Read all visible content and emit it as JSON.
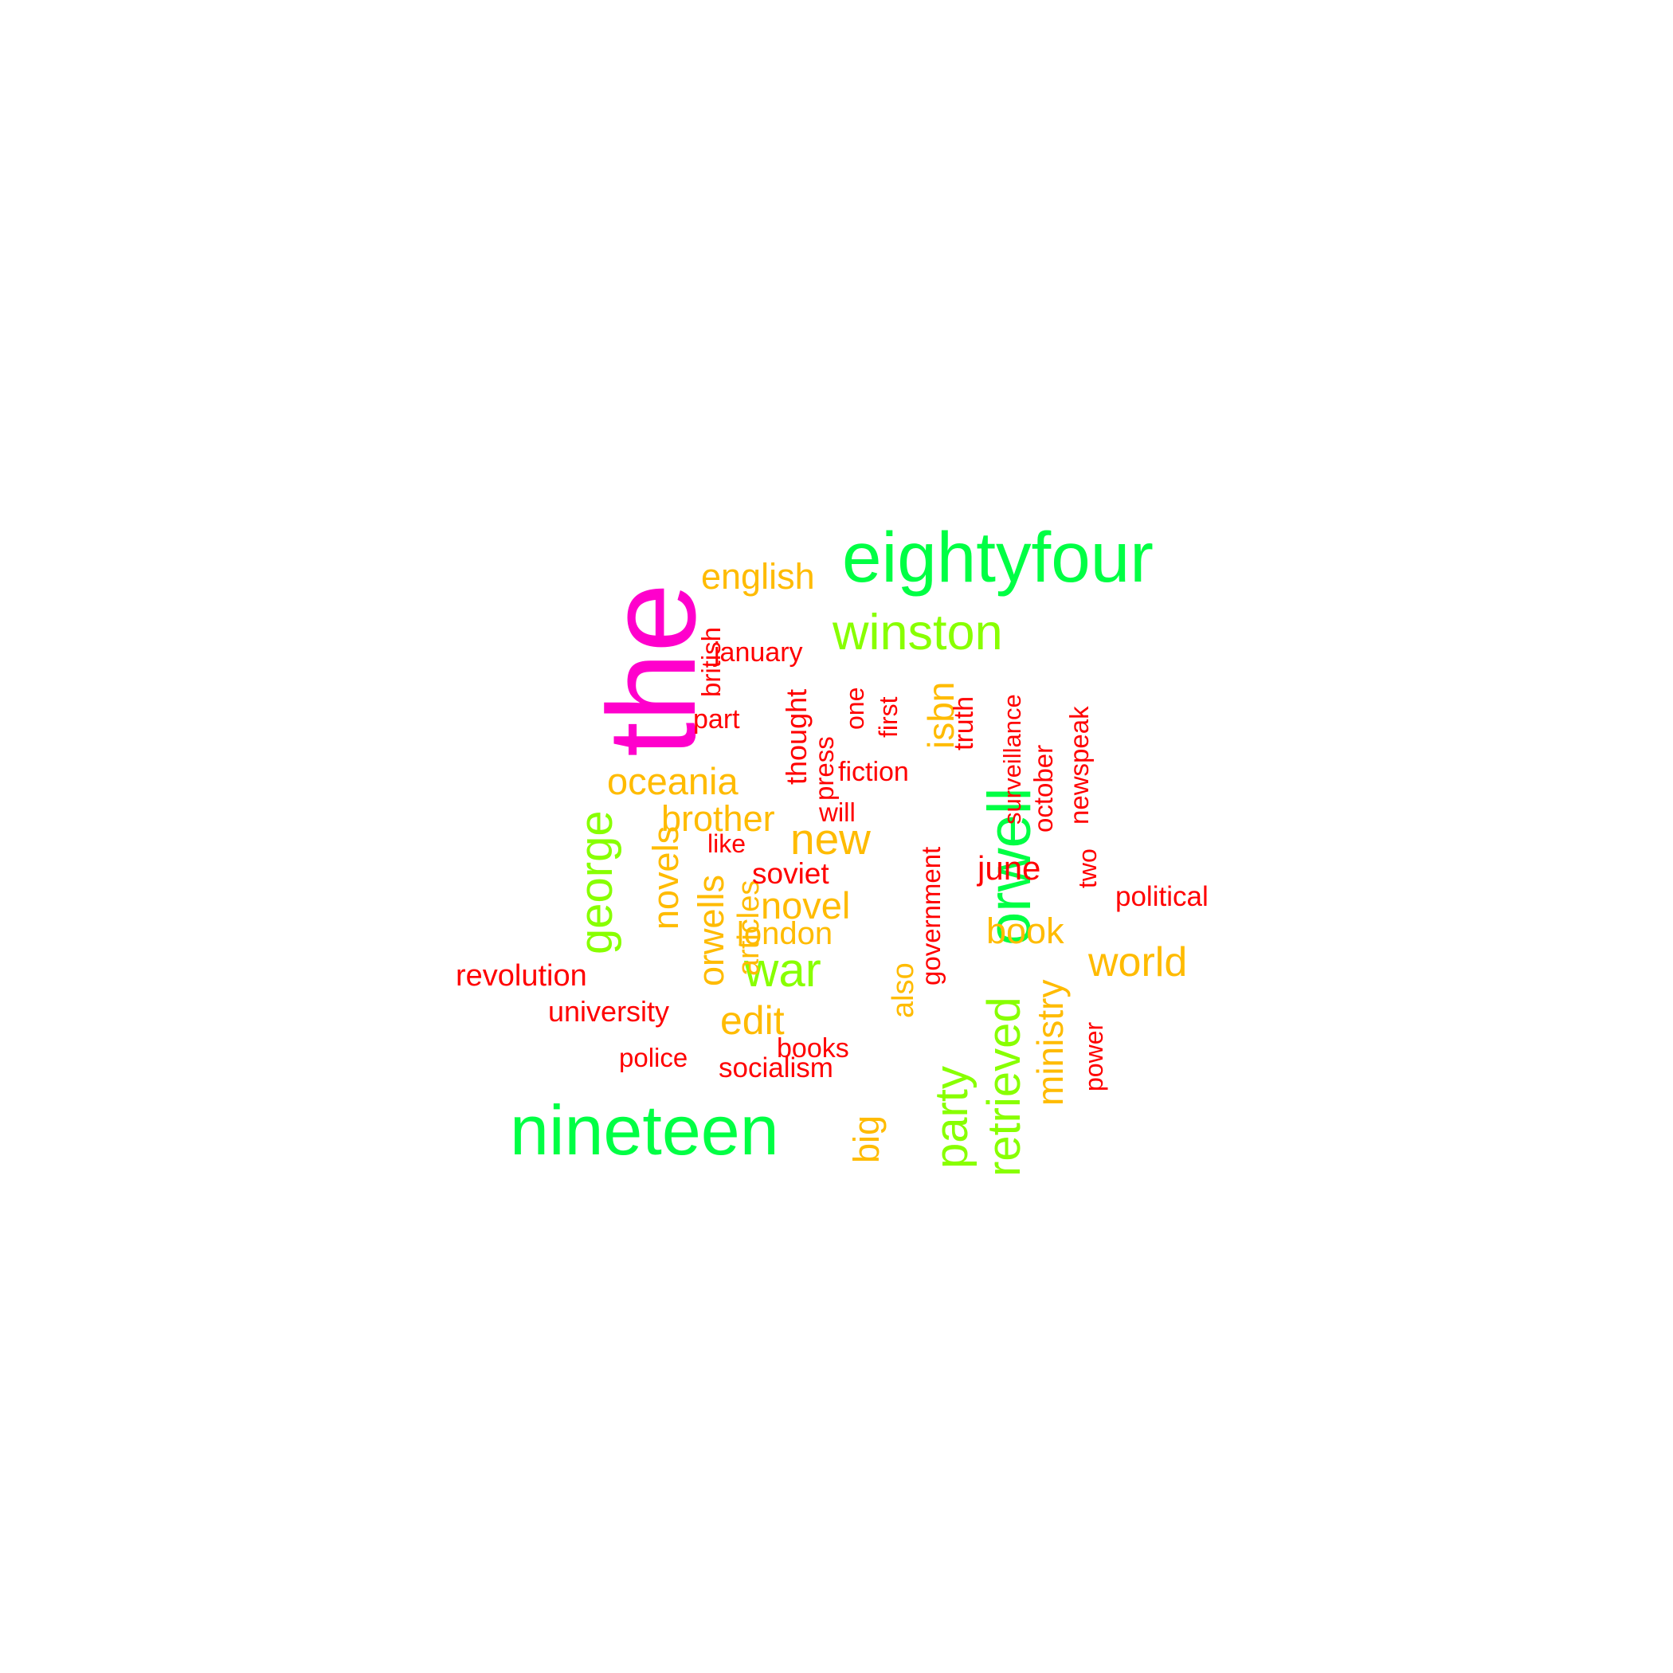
{
  "palette": {
    "magenta": "#FF00CC",
    "green": "#00FF44",
    "lime": "#88FF00",
    "amber": "#FFBB00",
    "red": "#FF0000"
  },
  "words": [
    {
      "text": "the",
      "color": "magenta",
      "weight": 10,
      "orientation": "vertical"
    },
    {
      "text": "eightyfour",
      "color": "green",
      "weight": 9,
      "orientation": "horizontal"
    },
    {
      "text": "nineteen",
      "color": "green",
      "weight": 9,
      "orientation": "horizontal"
    },
    {
      "text": "orwell",
      "color": "green",
      "weight": 8,
      "orientation": "vertical"
    },
    {
      "text": "winston",
      "color": "lime",
      "weight": 7,
      "orientation": "horizontal"
    },
    {
      "text": "george",
      "color": "lime",
      "weight": 7,
      "orientation": "vertical"
    },
    {
      "text": "party",
      "color": "lime",
      "weight": 7,
      "orientation": "vertical"
    },
    {
      "text": "retrieved",
      "color": "lime",
      "weight": 7,
      "orientation": "vertical"
    },
    {
      "text": "war",
      "color": "lime",
      "weight": 7,
      "orientation": "horizontal"
    },
    {
      "text": "english",
      "color": "amber",
      "weight": 5,
      "orientation": "horizontal"
    },
    {
      "text": "isbn",
      "color": "amber",
      "weight": 5,
      "orientation": "vertical"
    },
    {
      "text": "oceania",
      "color": "amber",
      "weight": 5,
      "orientation": "horizontal"
    },
    {
      "text": "brother",
      "color": "amber",
      "weight": 5,
      "orientation": "horizontal"
    },
    {
      "text": "new",
      "color": "amber",
      "weight": 6,
      "orientation": "horizontal"
    },
    {
      "text": "novels",
      "color": "amber",
      "weight": 5,
      "orientation": "vertical"
    },
    {
      "text": "orwells",
      "color": "amber",
      "weight": 5,
      "orientation": "vertical"
    },
    {
      "text": "articles",
      "color": "amber",
      "weight": 4,
      "orientation": "vertical"
    },
    {
      "text": "novel",
      "color": "amber",
      "weight": 5,
      "orientation": "horizontal"
    },
    {
      "text": "london",
      "color": "amber",
      "weight": 4,
      "orientation": "horizontal"
    },
    {
      "text": "edit",
      "color": "amber",
      "weight": 5,
      "orientation": "horizontal"
    },
    {
      "text": "also",
      "color": "amber",
      "weight": 4,
      "orientation": "vertical"
    },
    {
      "text": "book",
      "color": "amber",
      "weight": 5,
      "orientation": "horizontal"
    },
    {
      "text": "world",
      "color": "amber",
      "weight": 6,
      "orientation": "horizontal"
    },
    {
      "text": "ministry",
      "color": "amber",
      "weight": 5,
      "orientation": "vertical"
    },
    {
      "text": "big",
      "color": "amber",
      "weight": 4,
      "orientation": "vertical"
    },
    {
      "text": "british",
      "color": "red",
      "weight": 3,
      "orientation": "vertical"
    },
    {
      "text": "january",
      "color": "red",
      "weight": 3,
      "orientation": "horizontal"
    },
    {
      "text": "part",
      "color": "red",
      "weight": 3,
      "orientation": "horizontal"
    },
    {
      "text": "thought",
      "color": "red",
      "weight": 3,
      "orientation": "vertical"
    },
    {
      "text": "press",
      "color": "red",
      "weight": 3,
      "orientation": "vertical"
    },
    {
      "text": "one",
      "color": "red",
      "weight": 3,
      "orientation": "vertical"
    },
    {
      "text": "first",
      "color": "red",
      "weight": 3,
      "orientation": "vertical"
    },
    {
      "text": "truth",
      "color": "red",
      "weight": 3,
      "orientation": "vertical"
    },
    {
      "text": "fiction",
      "color": "red",
      "weight": 3,
      "orientation": "horizontal"
    },
    {
      "text": "will",
      "color": "red",
      "weight": 3,
      "orientation": "horizontal"
    },
    {
      "text": "surveillance",
      "color": "red",
      "weight": 3,
      "orientation": "vertical"
    },
    {
      "text": "october",
      "color": "red",
      "weight": 3,
      "orientation": "vertical"
    },
    {
      "text": "newspeak",
      "color": "red",
      "weight": 3,
      "orientation": "vertical"
    },
    {
      "text": "like",
      "color": "red",
      "weight": 3,
      "orientation": "horizontal"
    },
    {
      "text": "soviet",
      "color": "red",
      "weight": 3,
      "orientation": "horizontal"
    },
    {
      "text": "government",
      "color": "red",
      "weight": 3,
      "orientation": "vertical"
    },
    {
      "text": "june",
      "color": "red",
      "weight": 4,
      "orientation": "horizontal"
    },
    {
      "text": "two",
      "color": "red",
      "weight": 3,
      "orientation": "vertical"
    },
    {
      "text": "political",
      "color": "red",
      "weight": 3,
      "orientation": "horizontal"
    },
    {
      "text": "revolution",
      "color": "red",
      "weight": 3,
      "orientation": "horizontal"
    },
    {
      "text": "university",
      "color": "red",
      "weight": 3,
      "orientation": "horizontal"
    },
    {
      "text": "police",
      "color": "red",
      "weight": 3,
      "orientation": "horizontal"
    },
    {
      "text": "books",
      "color": "red",
      "weight": 3,
      "orientation": "horizontal"
    },
    {
      "text": "socialism",
      "color": "red",
      "weight": 3,
      "orientation": "horizontal"
    },
    {
      "text": "power",
      "color": "red",
      "weight": 3,
      "orientation": "vertical"
    }
  ]
}
